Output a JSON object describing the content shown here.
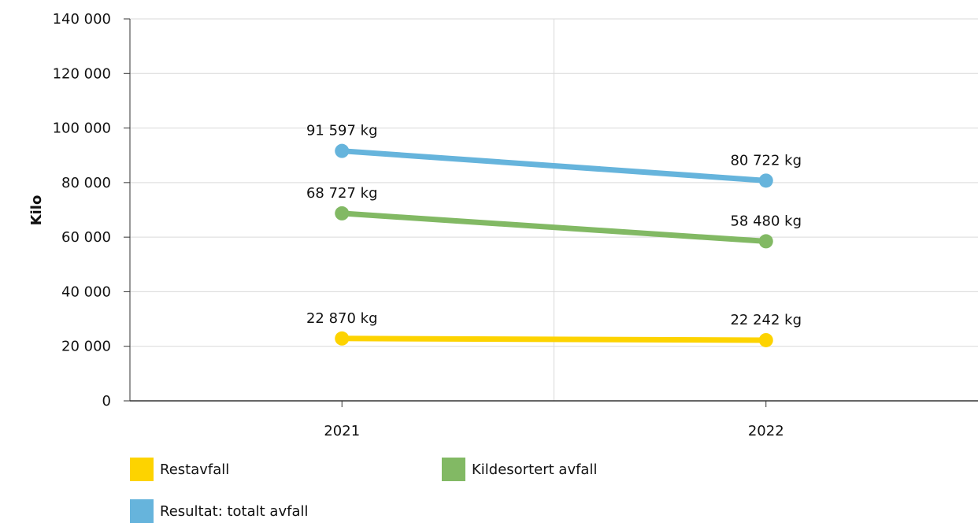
{
  "chart_data": {
    "type": "line",
    "ylabel": "Kilo",
    "xlabel": "",
    "ylim": [
      0,
      140000
    ],
    "yticks": [
      0,
      20000,
      40000,
      60000,
      80000,
      100000,
      120000,
      140000
    ],
    "ytick_labels": [
      "0",
      "20 000",
      "40 000",
      "60 000",
      "80 000",
      "100 000",
      "120 000",
      "140 000"
    ],
    "categories": [
      "2021",
      "2022"
    ],
    "grid": true,
    "legend_position": "bottom",
    "series": [
      {
        "name": "Restavfall",
        "color": "#fdd300",
        "values": [
          22870,
          22242
        ],
        "labels": [
          "22 870 kg",
          "22 242 kg"
        ]
      },
      {
        "name": "Kildesortert avfall",
        "color": "#82b964",
        "values": [
          68727,
          58480
        ],
        "labels": [
          "68 727 kg",
          "58 480 kg"
        ]
      },
      {
        "name": "Resultat: totalt avfall",
        "color": "#66b4dc",
        "values": [
          91597,
          80722
        ],
        "labels": [
          "91 597 kg",
          "80 722 kg"
        ]
      }
    ]
  }
}
